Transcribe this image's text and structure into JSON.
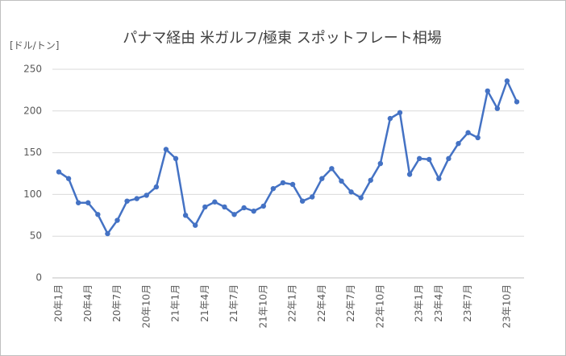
{
  "chart_data": {
    "type": "line",
    "title": "パナマ経由 米ガルフ/極東 スポットフレート相場",
    "y_axis_label": "[ドル/トン]",
    "categories": [
      "20年1月",
      null,
      null,
      "20年4月",
      null,
      null,
      "20年7月",
      null,
      null,
      "20年10月",
      null,
      null,
      "21年1月",
      null,
      null,
      "21年4月",
      null,
      null,
      "21年7月",
      null,
      null,
      "21年10月",
      null,
      null,
      "22年1月",
      null,
      null,
      "22年4月",
      null,
      null,
      "22年7月",
      null,
      null,
      "22年10月",
      null,
      null,
      null,
      "23年1月",
      null,
      "23年4月",
      null,
      null,
      "23年7月",
      null,
      null,
      null,
      "23年10月",
      null
    ],
    "series": [
      {
        "name": "スポットフレート",
        "color": "#4472c4",
        "values": [
          127,
          119,
          90,
          90,
          76,
          53,
          69,
          92,
          95,
          99,
          109,
          154,
          143,
          75,
          63,
          85,
          91,
          85,
          76,
          84,
          80,
          86,
          107,
          114,
          112,
          92,
          97,
          119,
          131,
          116,
          103,
          96,
          117,
          137,
          191,
          198,
          124,
          143,
          142,
          119,
          143,
          161,
          174,
          168,
          224,
          203,
          236,
          211
        ]
      }
    ],
    "ylim": [
      0,
      250
    ],
    "yticks": [
      0,
      50,
      100,
      150,
      200,
      250
    ],
    "grid": true
  }
}
